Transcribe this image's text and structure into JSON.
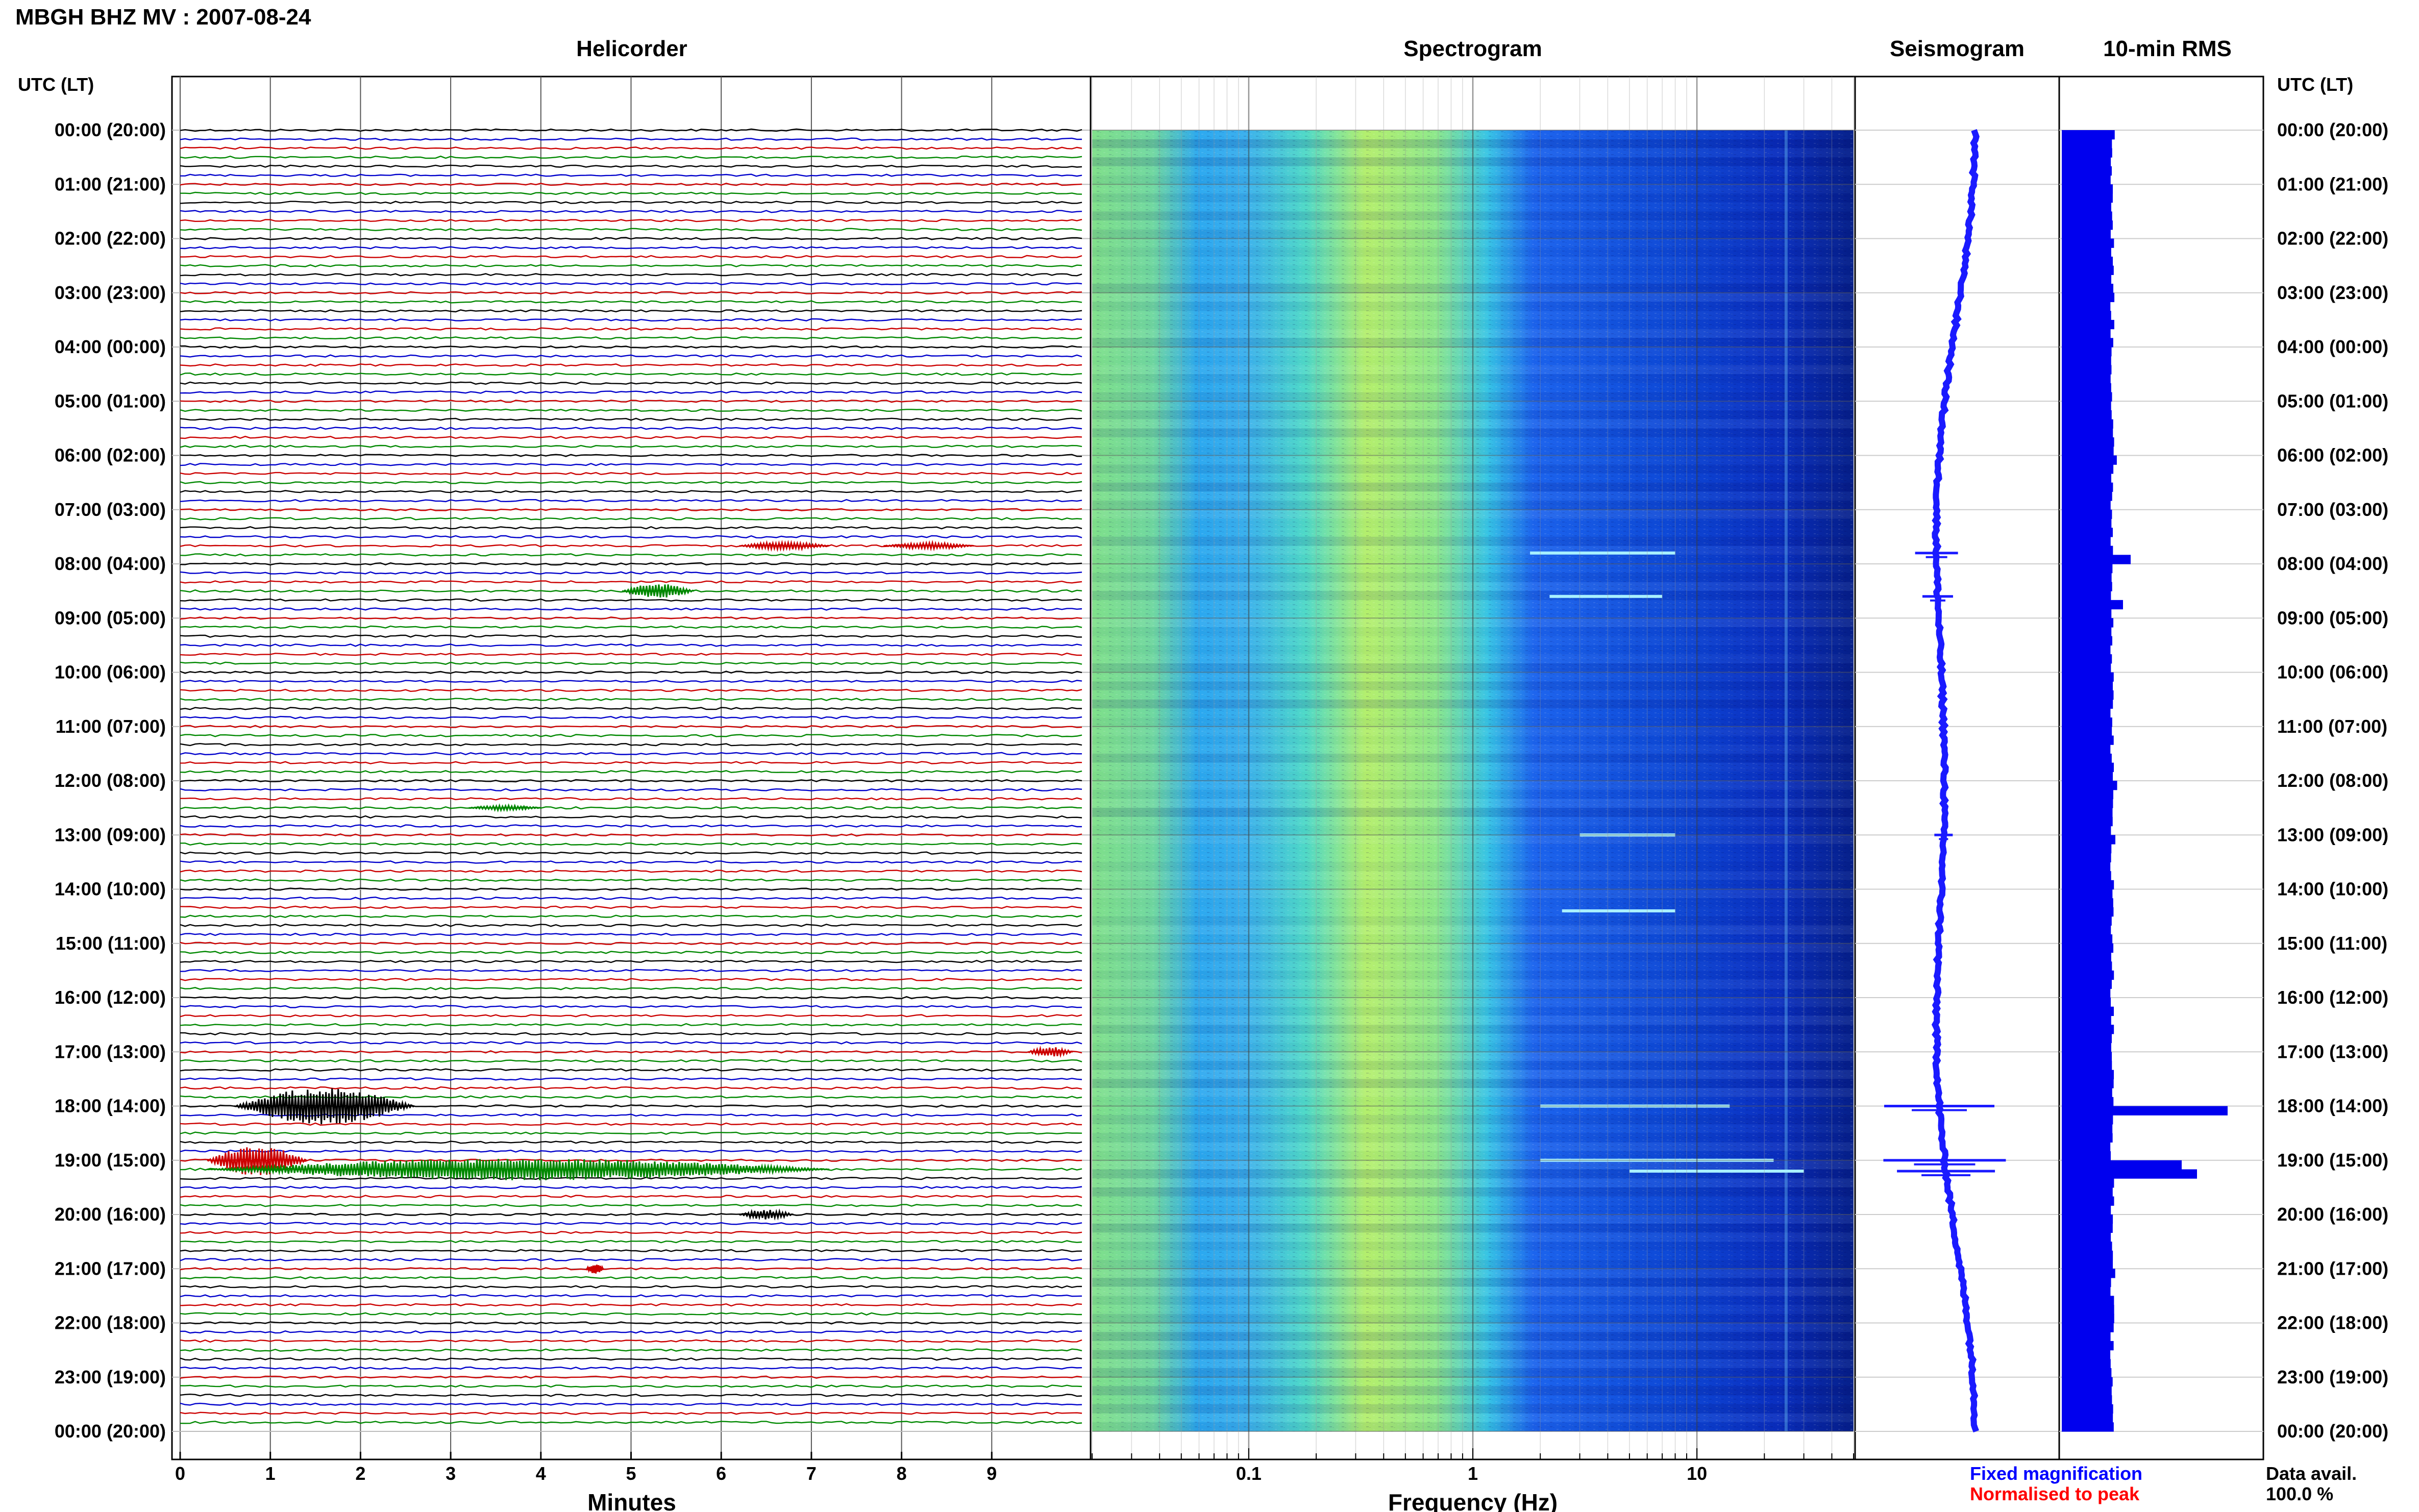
{
  "title": "MBGH BHZ MV : 2007-08-24",
  "panels": {
    "helicorder": "Helicorder",
    "spectrogram": "Spectrogram",
    "seismogram": "Seismogram",
    "rms": "10-min RMS"
  },
  "time_axis_label": "UTC (LT)",
  "time_labels": [
    "00:00 (20:00)",
    "01:00 (21:00)",
    "02:00 (22:00)",
    "03:00 (23:00)",
    "04:00 (00:00)",
    "05:00 (01:00)",
    "06:00 (02:00)",
    "07:00 (03:00)",
    "08:00 (04:00)",
    "09:00 (05:00)",
    "10:00 (06:00)",
    "11:00 (07:00)",
    "12:00 (08:00)",
    "13:00 (09:00)",
    "14:00 (10:00)",
    "15:00 (11:00)",
    "16:00 (12:00)",
    "17:00 (13:00)",
    "18:00 (14:00)",
    "19:00 (15:00)",
    "20:00 (16:00)",
    "21:00 (17:00)",
    "22:00 (18:00)",
    "23:00 (19:00)",
    "00:00 (20:00)"
  ],
  "xaxes": {
    "minutes_label": "Minutes",
    "minutes_ticks": [
      "0",
      "1",
      "2",
      "3",
      "4",
      "5",
      "6",
      "7",
      "8",
      "9"
    ],
    "frequency_label": "Frequency (Hz)",
    "frequency_ticks": [
      "0.1",
      "1",
      "10"
    ]
  },
  "legend": {
    "fixed": "Fixed magnification",
    "normalised": "Normalised to peak",
    "fixed_color": "#0000ff",
    "normalised_color": "#ff0000"
  },
  "data_avail": {
    "label": "Data avail.",
    "value": "100.0 %"
  },
  "colors": {
    "trace_cycle": [
      "#000000",
      "#0000cc",
      "#cc0000",
      "#008800"
    ],
    "rms_bar": "#0000ee"
  },
  "chart_data": [
    {
      "type": "line",
      "name": "helicorder",
      "x_range_minutes": [
        0,
        10
      ],
      "rows": 144,
      "row_minutes": 10,
      "events": [
        {
          "hour": 7.6,
          "minute_start": 6.2,
          "minute_end": 7.2,
          "amplitude": 0.6
        },
        {
          "hour": 7.6,
          "minute_start": 7.8,
          "minute_end": 8.8,
          "amplitude": 0.5
        },
        {
          "hour": 8.5,
          "minute_start": 4.9,
          "minute_end": 5.7,
          "amplitude": 1.2
        },
        {
          "hour": 12.5,
          "minute_start": 3.2,
          "minute_end": 4.0,
          "amplitude": 0.4
        },
        {
          "hour": 17.0,
          "minute_start": 9.4,
          "minute_end": 9.9,
          "amplitude": 0.8
        },
        {
          "hour": 18.0,
          "minute_start": 0.6,
          "minute_end": 2.6,
          "amplitude": 3.0
        },
        {
          "hour": 19.0,
          "minute_start": 0.3,
          "minute_end": 1.4,
          "amplitude": 2.5
        },
        {
          "hour": 19.17,
          "minute_start": 0.3,
          "minute_end": 7.2,
          "amplitude": 1.8
        },
        {
          "hour": 20.0,
          "minute_start": 6.2,
          "minute_end": 6.8,
          "amplitude": 0.8
        },
        {
          "hour": 21.0,
          "minute_start": 4.5,
          "minute_end": 4.7,
          "amplitude": 0.8
        }
      ]
    },
    {
      "type": "heatmap",
      "name": "spectrogram",
      "x_scale": "log",
      "x_range_hz": [
        0.02,
        50
      ],
      "y_range_hours": [
        0,
        24
      ],
      "lines_hz": [
        25
      ],
      "spectral_lines": [
        {
          "hour": 7.8,
          "f_start": 1.8,
          "f_end": 8
        },
        {
          "hour": 8.6,
          "f_start": 2.2,
          "f_end": 7
        },
        {
          "hour": 13.0,
          "f_start": 3,
          "f_end": 8
        },
        {
          "hour": 14.4,
          "f_start": 2.5,
          "f_end": 8
        },
        {
          "hour": 18.0,
          "f_start": 2,
          "f_end": 14
        },
        {
          "hour": 19.0,
          "f_start": 2,
          "f_end": 22
        },
        {
          "hour": 19.2,
          "f_start": 5,
          "f_end": 30
        }
      ]
    },
    {
      "type": "line",
      "name": "seismogram",
      "y_range_hours": [
        0,
        24
      ],
      "events": [
        {
          "hour": 7.8,
          "amplitude": 0.35
        },
        {
          "hour": 8.6,
          "amplitude": 0.25
        },
        {
          "hour": 13.0,
          "amplitude": 0.15
        },
        {
          "hour": 18.0,
          "amplitude": 0.9
        },
        {
          "hour": 19.0,
          "amplitude": 1.0
        },
        {
          "hour": 19.2,
          "amplitude": 0.8
        }
      ]
    },
    {
      "type": "bar",
      "name": "10-min RMS",
      "bins": 144,
      "baseline": 1.0,
      "events": [
        {
          "hour": 7.8,
          "value": 1.4
        },
        {
          "hour": 8.6,
          "value": 1.25
        },
        {
          "hour": 13.0,
          "value": 1.1
        },
        {
          "hour": 18.0,
          "value": 3.3
        },
        {
          "hour": 19.0,
          "value": 2.4
        },
        {
          "hour": 19.17,
          "value": 2.7
        }
      ]
    }
  ]
}
